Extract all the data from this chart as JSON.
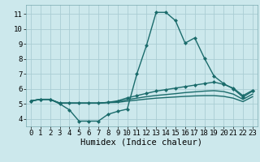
{
  "xlabel": "Humidex (Indice chaleur)",
  "bg_color": "#cce8ec",
  "grid_color": "#aacdd4",
  "line_color": "#1a6b6b",
  "xlim": [
    -0.5,
    23.5
  ],
  "ylim": [
    3.5,
    11.6
  ],
  "xticks": [
    0,
    1,
    2,
    3,
    4,
    5,
    6,
    7,
    8,
    9,
    10,
    11,
    12,
    13,
    14,
    15,
    16,
    17,
    18,
    19,
    20,
    21,
    22,
    23
  ],
  "yticks": [
    4,
    5,
    6,
    7,
    8,
    9,
    10,
    11
  ],
  "curves": [
    {
      "x": [
        0,
        1,
        2,
        3,
        4,
        5,
        6,
        7,
        8,
        9,
        10,
        11,
        12,
        13,
        14,
        15,
        16,
        17,
        18,
        19,
        20,
        21,
        22,
        23
      ],
      "y": [
        5.2,
        5.3,
        5.3,
        5.0,
        4.6,
        3.85,
        3.85,
        3.85,
        4.3,
        4.5,
        4.65,
        7.0,
        8.9,
        11.1,
        11.1,
        10.55,
        9.05,
        9.4,
        8.05,
        6.85,
        6.35,
        6.0,
        5.45,
        5.85
      ],
      "markers": true
    },
    {
      "x": [
        0,
        1,
        2,
        3,
        4,
        5,
        6,
        7,
        8,
        9,
        10,
        11,
        12,
        13,
        14,
        15,
        16,
        17,
        18,
        19,
        20,
        21,
        22,
        23
      ],
      "y": [
        5.2,
        5.3,
        5.3,
        5.05,
        5.05,
        5.05,
        5.05,
        5.05,
        5.1,
        5.2,
        5.4,
        5.55,
        5.7,
        5.85,
        5.95,
        6.05,
        6.15,
        6.25,
        6.35,
        6.45,
        6.3,
        6.05,
        5.55,
        5.9
      ],
      "markers": true
    },
    {
      "x": [
        0,
        1,
        2,
        3,
        4,
        5,
        6,
        7,
        8,
        9,
        10,
        11,
        12,
        13,
        14,
        15,
        16,
        17,
        18,
        19,
        20,
        21,
        22,
        23
      ],
      "y": [
        5.2,
        5.3,
        5.3,
        5.05,
        5.05,
        5.05,
        5.05,
        5.05,
        5.1,
        5.15,
        5.28,
        5.38,
        5.48,
        5.56,
        5.62,
        5.68,
        5.75,
        5.8,
        5.85,
        5.88,
        5.82,
        5.65,
        5.3,
        5.65
      ],
      "markers": false
    },
    {
      "x": [
        0,
        1,
        2,
        3,
        4,
        5,
        6,
        7,
        8,
        9,
        10,
        11,
        12,
        13,
        14,
        15,
        16,
        17,
        18,
        19,
        20,
        21,
        22,
        23
      ],
      "y": [
        5.2,
        5.3,
        5.3,
        5.05,
        5.05,
        5.05,
        5.05,
        5.05,
        5.08,
        5.1,
        5.18,
        5.25,
        5.32,
        5.38,
        5.42,
        5.46,
        5.5,
        5.53,
        5.55,
        5.55,
        5.5,
        5.38,
        5.15,
        5.48
      ],
      "markers": false
    }
  ],
  "marker_style": "D",
  "marker_size": 2.5,
  "line_width": 1.0,
  "tick_fontsize": 6.5,
  "xlabel_fontsize": 7.5
}
